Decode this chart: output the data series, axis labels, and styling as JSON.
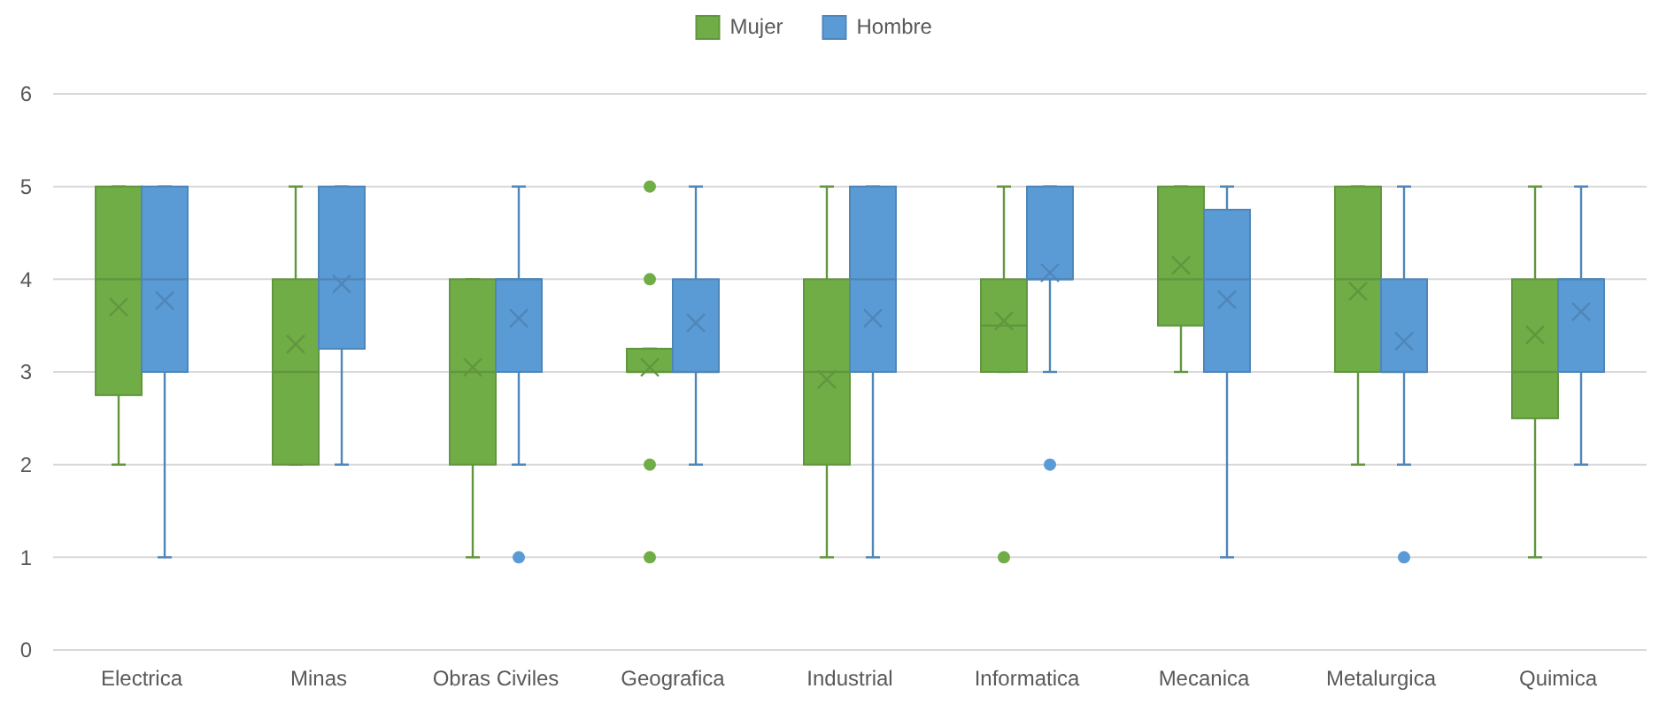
{
  "chart_data": {
    "type": "box",
    "categories": [
      "Electrica",
      "Minas",
      "Obras Civiles",
      "Geografica",
      "Industrial",
      "Informatica",
      "Mecanica",
      "Metalurgica",
      "Quimica"
    ],
    "series": [
      {
        "name": "Mujer",
        "color": "#70ad47",
        "boxes": [
          {
            "low": 2,
            "q1": 2.75,
            "median": 4,
            "q3": 5,
            "high": 5,
            "mean": 3.7
          },
          {
            "low": 2,
            "q1": 2,
            "median": 3,
            "q3": 4,
            "high": 5,
            "mean": 3.3
          },
          {
            "low": 1,
            "q1": 2,
            "median": 3,
            "q3": 4,
            "high": 4,
            "mean": 3.05
          },
          {
            "low": 3,
            "q1": 3,
            "median": 3,
            "q3": 3.25,
            "high": 3.25,
            "mean": 3.05,
            "outliers": [
              1,
              2,
              4,
              5
            ]
          },
          {
            "low": 1,
            "q1": 2,
            "median": 3,
            "q3": 4,
            "high": 5,
            "mean": 2.92
          },
          {
            "low": 3,
            "q1": 3,
            "median": 3.5,
            "q3": 4,
            "high": 5,
            "mean": 3.55,
            "outliers": [
              1
            ]
          },
          {
            "low": 3,
            "q1": 3.5,
            "median": 4,
            "q3": 5,
            "high": 5,
            "mean": 4.15
          },
          {
            "low": 2,
            "q1": 3,
            "median": 4,
            "q3": 5,
            "high": 5,
            "mean": 3.87
          },
          {
            "low": 1,
            "q1": 2.5,
            "median": 3,
            "q3": 4,
            "high": 5,
            "mean": 3.4
          }
        ]
      },
      {
        "name": "Hombre",
        "color": "#5b9bd5",
        "boxes": [
          {
            "low": 1,
            "q1": 3,
            "median": 4,
            "q3": 5,
            "high": 5,
            "mean": 3.77
          },
          {
            "low": 2,
            "q1": 3.25,
            "median": 4,
            "q3": 5,
            "high": 5,
            "mean": 3.95
          },
          {
            "low": 2,
            "q1": 3,
            "median": 4,
            "q3": 4,
            "high": 5,
            "mean": 3.58,
            "outliers": [
              1
            ]
          },
          {
            "low": 2,
            "q1": 3,
            "median": 3,
            "q3": 4,
            "high": 5,
            "mean": 3.53
          },
          {
            "low": 1,
            "q1": 3,
            "median": 4,
            "q3": 5,
            "high": 5,
            "mean": 3.58
          },
          {
            "low": 3,
            "q1": 4,
            "median": 4,
            "q3": 5,
            "high": 5,
            "mean": 4.07,
            "outliers": [
              2
            ]
          },
          {
            "low": 1,
            "q1": 3,
            "median": 4,
            "q3": 4.75,
            "high": 5,
            "mean": 3.78
          },
          {
            "low": 2,
            "q1": 3,
            "median": 3,
            "q3": 4,
            "high": 5,
            "mean": 3.33,
            "outliers": [
              1
            ]
          },
          {
            "low": 2,
            "q1": 3,
            "median": 4,
            "q3": 4,
            "high": 5,
            "mean": 3.65
          }
        ]
      }
    ],
    "ylim": [
      0,
      6
    ],
    "yticks": [
      0,
      1,
      2,
      3,
      4,
      5,
      6
    ],
    "grid": "y",
    "legend": "top"
  }
}
